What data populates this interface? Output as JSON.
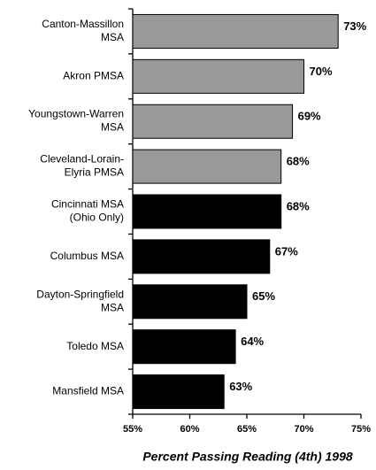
{
  "chart_data": {
    "type": "bar",
    "orientation": "horizontal",
    "x_label": "Percent Passing Reading (4th) 1998",
    "categories": [
      "Canton-Massillon\nMSA",
      "Akron PMSA",
      "Youngstown-Warren\nMSA",
      "Cleveland-Lorain-\nElyria PMSA",
      "Cincinnati MSA\n(Ohio Only)",
      "Columbus MSA",
      "Dayton-Springfield\nMSA",
      "Toledo MSA",
      "Mansfield MSA"
    ],
    "values": [
      73,
      70,
      69,
      68,
      68,
      67,
      65,
      64,
      63
    ],
    "value_labels": [
      "73%",
      "70%",
      "69%",
      "68%",
      "68%",
      "67%",
      "65%",
      "64%",
      "63%"
    ],
    "colors": [
      "#999999",
      "#999999",
      "#999999",
      "#999999",
      "#000000",
      "#000000",
      "#000000",
      "#000000",
      "#000000"
    ],
    "xlim": [
      55,
      75
    ],
    "xticks": [
      {
        "value": 55,
        "label": "55%"
      },
      {
        "value": 60,
        "label": "60%"
      },
      {
        "value": 65,
        "label": "65%"
      },
      {
        "value": 70,
        "label": "70%"
      },
      {
        "value": 75,
        "label": "75%"
      }
    ]
  }
}
